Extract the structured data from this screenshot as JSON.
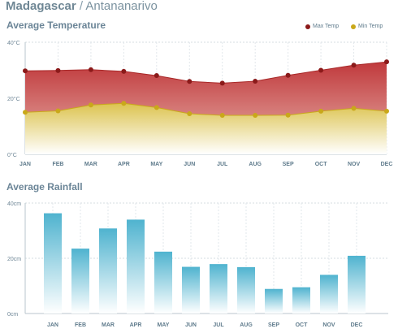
{
  "header": {
    "country": "Madagascar",
    "separator": " / ",
    "city": "Antananarivo"
  },
  "months": [
    "JAN",
    "FEB",
    "MAR",
    "APR",
    "MAY",
    "JUN",
    "JUL",
    "AUG",
    "SEP",
    "OCT",
    "NOV",
    "DEC"
  ],
  "chart_data": [
    {
      "type": "area",
      "title": "Average Temperature",
      "categories": [
        "JAN",
        "FEB",
        "MAR",
        "APR",
        "MAY",
        "JUN",
        "JUL",
        "AUG",
        "SEP",
        "OCT",
        "NOV",
        "DEC"
      ],
      "y_ticks": [
        "40°C",
        "20°C",
        "0°C"
      ],
      "ylim": [
        0,
        40
      ],
      "unit": "°C",
      "grid": true,
      "legend_position": "top-right",
      "series": [
        {
          "name": "Max Temp",
          "color": "#8b1a1a",
          "values": [
            29.8,
            29.9,
            30.2,
            29.6,
            28.1,
            26.0,
            25.4,
            26.1,
            28.2,
            30.0,
            31.8,
            33.0
          ]
        },
        {
          "name": "Min Temp",
          "color": "#c9a81a",
          "values": [
            15.0,
            15.5,
            17.6,
            18.2,
            16.7,
            14.5,
            13.9,
            13.9,
            14.0,
            15.4,
            16.4,
            15.4
          ]
        }
      ]
    },
    {
      "type": "bar",
      "title": "Average Rainfall",
      "categories": [
        "JAN",
        "FEB",
        "MAR",
        "APR",
        "MAY",
        "JUN",
        "JUL",
        "AUG",
        "SEP",
        "OCT",
        "NOV",
        "DEC"
      ],
      "y_ticks": [
        "40cm",
        "20cm",
        "0cm"
      ],
      "ylim": [
        0,
        40
      ],
      "unit": "cm",
      "grid": true,
      "values": [
        36.3,
        23.5,
        30.8,
        34.0,
        22.4,
        16.9,
        17.9,
        16.8,
        8.9,
        9.5,
        14.0,
        20.9
      ],
      "color": "#4fb3cf"
    }
  ]
}
